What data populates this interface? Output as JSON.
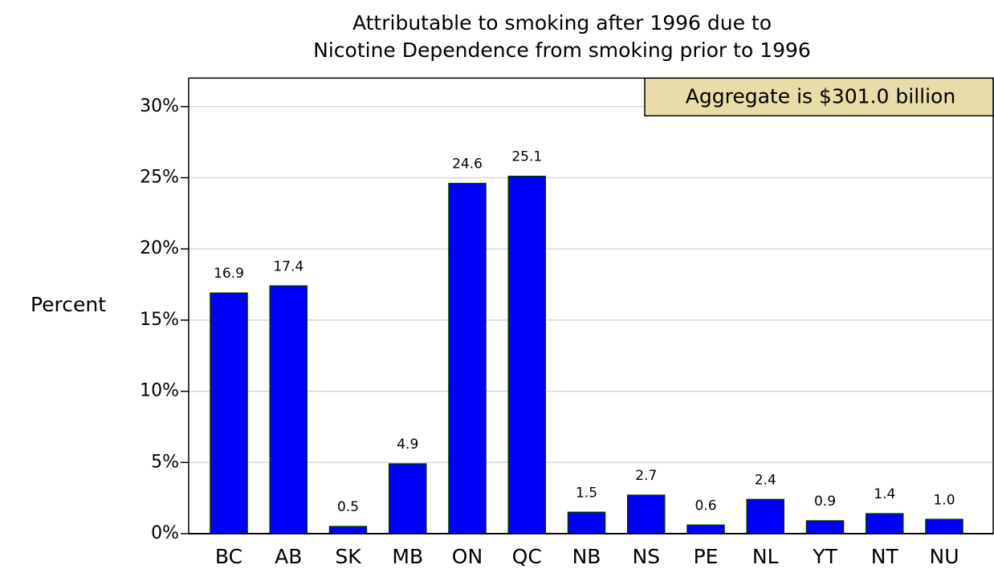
{
  "chart_data": {
    "type": "bar",
    "title": [
      "Attributable to smoking after 1996 due to",
      "Nicotine Dependence from smoking prior to 1996"
    ],
    "ylabel": "Percent",
    "annotation": "Aggregate is $301.0 billion",
    "categories": [
      "BC",
      "AB",
      "SK",
      "MB",
      "ON",
      "QC",
      "NB",
      "NS",
      "PE",
      "NL",
      "YT",
      "NT",
      "NU"
    ],
    "values": [
      16.9,
      17.4,
      0.5,
      4.9,
      24.6,
      25.1,
      1.5,
      2.7,
      0.6,
      2.4,
      0.9,
      1.4,
      1.0
    ],
    "value_labels": [
      "16.9",
      "17.4",
      "0.5",
      "4.9",
      "24.6",
      "25.1",
      "1.5",
      "2.7",
      "0.6",
      "2.4",
      "0.9",
      "1.4",
      "1.0"
    ],
    "color": "#0000ff",
    "ylim": [
      0,
      32
    ],
    "yticks": [
      {
        "value": 0,
        "label": "0%"
      },
      {
        "value": 5,
        "label": "5%"
      },
      {
        "value": 10,
        "label": "10%"
      },
      {
        "value": 15,
        "label": "15%"
      },
      {
        "value": 20,
        "label": "20%"
      },
      {
        "value": 25,
        "label": "25%"
      },
      {
        "value": 30,
        "label": "30%"
      }
    ],
    "grid": true
  }
}
